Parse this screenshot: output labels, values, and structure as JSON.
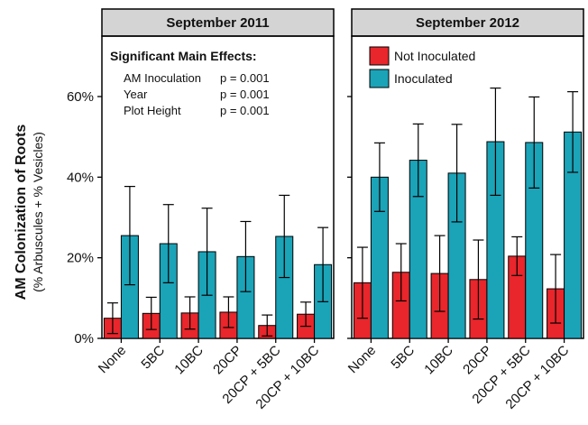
{
  "chart_data": [
    {
      "type": "bar",
      "title": "September 2011",
      "ylabel": "AM Colonization of Roots",
      "ylabel_sub": "(% Arbuscules + % Vesicles)",
      "ylim": [
        0,
        75
      ],
      "yticks": [
        0,
        20,
        40,
        60
      ],
      "ytick_labels": [
        "0%",
        "20%",
        "40%",
        "60%"
      ],
      "categories": [
        "None",
        "5BC",
        "10BC",
        "20CP",
        "20CP + 5BC",
        "20CP + 10BC"
      ],
      "series": [
        {
          "name": "Not Inoculated",
          "color": "#e8262b",
          "values": [
            5,
            6.2,
            6.3,
            6.5,
            3.2,
            6
          ],
          "err": [
            3.8,
            4,
            4,
            3.8,
            2.6,
            3
          ]
        },
        {
          "name": "Inoculated",
          "color": "#1ba3b8",
          "values": [
            25.5,
            23.5,
            21.5,
            20.3,
            25.3,
            18.3
          ],
          "err": [
            12.2,
            9.7,
            10.8,
            8.7,
            10.2,
            9.2
          ]
        }
      ],
      "annotation": {
        "title": "Significant Main Effects:",
        "rows": [
          {
            "label": "AM Inoculation",
            "value": "p = 0.001"
          },
          {
            "label": "Year",
            "value": "p = 0.001"
          },
          {
            "label": "Plot Height",
            "value": "p = 0.001"
          }
        ]
      }
    },
    {
      "type": "bar",
      "title": "September 2012",
      "ylim": [
        0,
        75
      ],
      "categories": [
        "None",
        "5BC",
        "10BC",
        "20CP",
        "20CP + 5BC",
        "20CP + 10BC"
      ],
      "series": [
        {
          "name": "Not Inoculated",
          "color": "#e8262b",
          "values": [
            13.8,
            16.4,
            16.1,
            14.6,
            20.4,
            12.3
          ],
          "err": [
            8.8,
            7.1,
            9.4,
            9.8,
            4.8,
            8.5
          ]
        },
        {
          "name": "Inoculated",
          "color": "#1ba3b8",
          "values": [
            40,
            44.2,
            41,
            48.8,
            48.6,
            51.2
          ],
          "err": [
            8.5,
            9,
            12.1,
            13.3,
            11.3,
            10
          ]
        }
      ],
      "legend": {
        "position": "top-left",
        "entries": [
          "Not Inoculated",
          "Inoculated"
        ]
      }
    }
  ]
}
